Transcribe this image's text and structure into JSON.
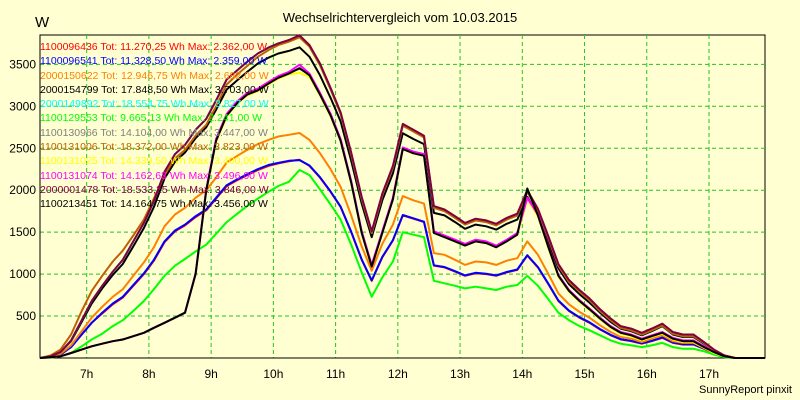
{
  "chart_data": {
    "type": "line",
    "title": "Wechselrichtervergleich vom 10.03.2015",
    "ylabel": "W",
    "credit": "SunnyReport pinxit",
    "xlim": [
      6.25,
      17.9
    ],
    "ylim": [
      0,
      3850
    ],
    "xticks": [
      7,
      8,
      9,
      10,
      11,
      12,
      13,
      14,
      15,
      16,
      17
    ],
    "xtick_labels": [
      "7h",
      "8h",
      "9h",
      "10h",
      "11h",
      "12h",
      "13h",
      "14h",
      "15h",
      "16h",
      "17h"
    ],
    "yticks": [
      500,
      1000,
      1500,
      2000,
      2500,
      3000,
      3500
    ],
    "ytick_labels": [
      "500",
      "1000",
      "1500",
      "2000",
      "2500",
      "3000",
      "3500"
    ],
    "grid": true,
    "legend_position": "top-left",
    "x": [
      6.25,
      6.42,
      6.58,
      6.75,
      6.92,
      7.08,
      7.25,
      7.42,
      7.58,
      7.75,
      7.92,
      8.08,
      8.25,
      8.42,
      8.58,
      8.75,
      8.92,
      9.08,
      9.25,
      9.42,
      9.58,
      9.75,
      9.92,
      10.08,
      10.25,
      10.42,
      10.58,
      10.75,
      10.92,
      11.08,
      11.25,
      11.42,
      11.58,
      11.75,
      11.92,
      12.08,
      12.25,
      12.42,
      12.58,
      12.75,
      12.92,
      13.08,
      13.25,
      13.42,
      13.58,
      13.75,
      13.92,
      14.08,
      14.25,
      14.42,
      14.58,
      14.75,
      14.92,
      15.08,
      15.25,
      15.42,
      15.58,
      15.75,
      15.92,
      16.08,
      16.25,
      16.42,
      16.58,
      16.75,
      16.92,
      17.08,
      17.25,
      17.42,
      17.58,
      17.75,
      17.9
    ],
    "series": [
      {
        "name": "1100096436 Tot: 11.270,25 Wh Max: 2.362,00 W",
        "color": "#ff0000",
        "values": [
          0,
          10,
          40,
          130,
          280,
          420,
          530,
          640,
          720,
          860,
          1000,
          1160,
          1380,
          1510,
          1580,
          1680,
          1760,
          1900,
          2050,
          2120,
          2180,
          2240,
          2290,
          2320,
          2345,
          2362,
          2290,
          2150,
          1980,
          1800,
          1500,
          1170,
          920,
          1200,
          1400,
          1700,
          1660,
          1620,
          1100,
          1080,
          1030,
          980,
          1010,
          1000,
          980,
          1020,
          1050,
          1220,
          1080,
          880,
          680,
          560,
          480,
          420,
          340,
          270,
          220,
          200,
          170,
          200,
          240,
          180,
          160,
          160,
          110,
          60,
          20,
          0,
          0,
          0,
          0
        ]
      },
      {
        "name": "1100096541 Tot: 11.328,50 Wh Max: 2.359,00 W",
        "color": "#0000ff",
        "values": [
          0,
          10,
          40,
          130,
          280,
          420,
          540,
          650,
          730,
          870,
          1010,
          1170,
          1390,
          1520,
          1590,
          1690,
          1770,
          1910,
          2060,
          2130,
          2190,
          2250,
          2300,
          2325,
          2350,
          2359,
          2295,
          2155,
          1985,
          1805,
          1505,
          1175,
          925,
          1205,
          1405,
          1705,
          1665,
          1625,
          1105,
          1085,
          1035,
          985,
          1015,
          1005,
          985,
          1025,
          1055,
          1225,
          1085,
          885,
          685,
          565,
          485,
          425,
          345,
          275,
          225,
          205,
          175,
          205,
          245,
          185,
          165,
          165,
          115,
          65,
          20,
          0,
          0,
          0,
          0
        ]
      },
      {
        "name": "2000150622 Tot: 12.946,75 Wh Max: 2.682,00 W",
        "color": "#ff8000",
        "values": [
          0,
          10,
          50,
          150,
          320,
          480,
          610,
          730,
          820,
          980,
          1140,
          1320,
          1570,
          1710,
          1790,
          1910,
          2000,
          2150,
          2330,
          2410,
          2480,
          2550,
          2600,
          2640,
          2660,
          2682,
          2600,
          2440,
          2250,
          2040,
          1700,
          1330,
          1040,
          1360,
          1590,
          1930,
          1880,
          1840,
          1250,
          1230,
          1170,
          1110,
          1150,
          1140,
          1110,
          1160,
          1190,
          1390,
          1230,
          1000,
          770,
          640,
          550,
          480,
          390,
          310,
          250,
          230,
          190,
          230,
          270,
          200,
          180,
          180,
          120,
          70,
          20,
          0,
          0,
          0,
          0
        ]
      },
      {
        "name": "2000154799 Tot: 17.848,50 Wh Max: 3.703,00 W",
        "color": "#000000",
        "values": [
          0,
          20,
          70,
          200,
          430,
          650,
          830,
          990,
          1120,
          1330,
          1550,
          1800,
          2140,
          2340,
          2450,
          2620,
          2750,
          2960,
          3200,
          3310,
          3410,
          3510,
          3580,
          3630,
          3660,
          3703,
          3590,
          3370,
          3100,
          2820,
          2350,
          1840,
          1440,
          1880,
          2200,
          2680,
          2610,
          2550,
          1730,
          1700,
          1620,
          1540,
          1590,
          1570,
          1530,
          1600,
          1650,
          1920,
          1700,
          1380,
          1070,
          880,
          760,
          660,
          540,
          430,
          350,
          320,
          270,
          320,
          380,
          280,
          250,
          250,
          170,
          90,
          30,
          0,
          0,
          0,
          0
        ]
      },
      {
        "name": "2000149892 Tot: 18.554,75 Wh Max: 3.827,00 W",
        "color": "#00ffff",
        "values": [
          0,
          20,
          70,
          210,
          450,
          680,
          860,
          1030,
          1170,
          1390,
          1610,
          1870,
          2220,
          2430,
          2540,
          2720,
          2850,
          3070,
          3320,
          3430,
          3530,
          3630,
          3700,
          3750,
          3780,
          3827,
          3710,
          3490,
          3200,
          2910,
          2430,
          1900,
          1490,
          1940,
          2270,
          2770,
          2700,
          2630,
          1790,
          1750,
          1670,
          1590,
          1640,
          1620,
          1580,
          1650,
          1700,
          1980,
          1760,
          1430,
          1100,
          910,
          790,
          690,
          560,
          450,
          360,
          330,
          280,
          330,
          390,
          290,
          260,
          260,
          180,
          90,
          30,
          0,
          0,
          0,
          0
        ]
      },
      {
        "name": "1100129553 Tot: 9.665,13 Wh Max: 2.241,00 W",
        "color": "#00ff00",
        "values": [
          0,
          5,
          20,
          60,
          140,
          220,
          290,
          380,
          450,
          560,
          680,
          820,
          980,
          1100,
          1180,
          1270,
          1350,
          1480,
          1620,
          1720,
          1810,
          1900,
          1980,
          2050,
          2100,
          2241,
          2180,
          2010,
          1830,
          1650,
          1350,
          1020,
          730,
          960,
          1150,
          1500,
          1470,
          1440,
          920,
          890,
          860,
          830,
          850,
          830,
          810,
          850,
          870,
          980,
          860,
          700,
          540,
          450,
          380,
          330,
          270,
          210,
          170,
          150,
          130,
          150,
          180,
          130,
          110,
          110,
          80,
          40,
          10,
          0,
          0,
          0,
          0
        ]
      },
      {
        "name": "1100130966 Tot: 14.104,00 Wh Max: 3.447,00 W",
        "color": "#808080",
        "values": [
          0,
          10,
          20,
          60,
          100,
          140,
          170,
          200,
          220,
          260,
          300,
          360,
          420,
          480,
          540,
          1000,
          2000,
          2600,
          2900,
          3050,
          3150,
          3200,
          3280,
          3350,
          3400,
          3447,
          3380,
          3150,
          2900,
          2600,
          2100,
          1500,
          1100,
          1500,
          1900,
          2500,
          2450,
          2420,
          1500,
          1450,
          1400,
          1350,
          1400,
          1380,
          1330,
          1400,
          1480,
          1900,
          1700,
          1320,
          980,
          800,
          680,
          580,
          470,
          370,
          300,
          270,
          220,
          260,
          300,
          230,
          200,
          200,
          130,
          70,
          20,
          0,
          0,
          0,
          0
        ]
      },
      {
        "name": "1100131006 Tot: 18.372,00 Wh Max: 3.823,00 W",
        "color": "#c06000",
        "values": [
          0,
          30,
          100,
          280,
          560,
          800,
          980,
          1150,
          1280,
          1460,
          1650,
          1900,
          2180,
          2380,
          2480,
          2650,
          2780,
          3000,
          3260,
          3380,
          3480,
          3590,
          3670,
          3730,
          3770,
          3823,
          3710,
          3490,
          3200,
          2910,
          2430,
          1900,
          1490,
          1940,
          2270,
          2770,
          2700,
          2630,
          1790,
          1750,
          1670,
          1590,
          1640,
          1620,
          1580,
          1650,
          1700,
          1980,
          1760,
          1430,
          1100,
          910,
          790,
          690,
          560,
          450,
          360,
          330,
          280,
          330,
          390,
          290,
          260,
          260,
          180,
          90,
          30,
          0,
          0,
          0,
          0
        ]
      },
      {
        "name": "1100131025 Tot: 14.339,50 Wh Max: 3.400,00 W",
        "color": "#ffff00",
        "values": [
          0,
          10,
          20,
          60,
          100,
          140,
          170,
          200,
          220,
          260,
          300,
          360,
          420,
          480,
          540,
          1000,
          1980,
          2580,
          2880,
          3030,
          3130,
          3180,
          3260,
          3330,
          3380,
          3400,
          3350,
          3130,
          2880,
          2590,
          2090,
          1490,
          1090,
          1490,
          1890,
          2490,
          2440,
          2410,
          1490,
          1440,
          1390,
          1340,
          1390,
          1370,
          1320,
          1390,
          1470,
          1890,
          1690,
          1310,
          970,
          790,
          670,
          570,
          460,
          360,
          290,
          260,
          210,
          250,
          290,
          220,
          190,
          190,
          120,
          60,
          20,
          0,
          0,
          0,
          0
        ]
      },
      {
        "name": "1100131074 Tot: 14.162,63 Wh Max: 3.496,00 W",
        "color": "#ff00ff",
        "values": [
          0,
          10,
          20,
          60,
          100,
          140,
          170,
          200,
          220,
          260,
          300,
          360,
          420,
          480,
          540,
          1010,
          2010,
          2610,
          2910,
          3060,
          3160,
          3210,
          3290,
          3360,
          3410,
          3496,
          3390,
          3160,
          2910,
          2610,
          2110,
          1510,
          1110,
          1510,
          1910,
          2510,
          2460,
          2430,
          1510,
          1460,
          1410,
          1360,
          1410,
          1390,
          1340,
          1410,
          1490,
          1910,
          1710,
          1330,
          990,
          810,
          690,
          590,
          480,
          380,
          310,
          280,
          230,
          270,
          310,
          240,
          210,
          210,
          140,
          70,
          20,
          0,
          0,
          0,
          0
        ]
      },
      {
        "name": "2000001478 Tot: 18.533,25 Wh Max: 3.846,00 W",
        "color": "#800040",
        "values": [
          0,
          20,
          70,
          210,
          450,
          680,
          860,
          1030,
          1170,
          1390,
          1610,
          1870,
          2220,
          2430,
          2540,
          2720,
          2850,
          3070,
          3320,
          3430,
          3530,
          3630,
          3700,
          3750,
          3790,
          3846,
          3730,
          3510,
          3220,
          2930,
          2450,
          1920,
          1510,
          1960,
          2290,
          2790,
          2720,
          2650,
          1810,
          1770,
          1690,
          1610,
          1660,
          1640,
          1600,
          1670,
          1720,
          2000,
          1780,
          1450,
          1120,
          930,
          810,
          710,
          580,
          470,
          380,
          350,
          300,
          350,
          410,
          310,
          280,
          280,
          190,
          100,
          30,
          0,
          0,
          0,
          0
        ]
      },
      {
        "name": "1100213451 Tot: 14.164,75 Wh Max: 3.456,00 W",
        "color": "#000000",
        "values": [
          0,
          10,
          20,
          60,
          100,
          140,
          170,
          200,
          220,
          260,
          300,
          360,
          420,
          480,
          540,
          1000,
          1990,
          2590,
          2890,
          3040,
          3140,
          3190,
          3270,
          3340,
          3390,
          3456,
          3370,
          3140,
          2890,
          2590,
          2090,
          1490,
          1090,
          1490,
          1890,
          2490,
          2440,
          2410,
          1490,
          1440,
          1390,
          1340,
          1390,
          1370,
          1320,
          1390,
          1470,
          2020,
          1700,
          1320,
          980,
          800,
          680,
          580,
          470,
          370,
          300,
          270,
          220,
          260,
          300,
          230,
          200,
          200,
          130,
          70,
          20,
          0,
          0,
          0,
          0
        ]
      }
    ]
  }
}
